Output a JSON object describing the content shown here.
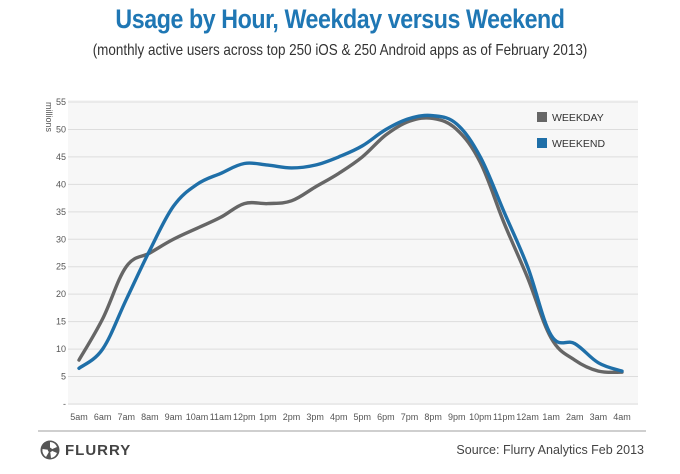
{
  "header": {
    "title": "Usage by Hour, Weekday versus Weekend",
    "subtitle": "(monthly active users across top 250 iOS & 250 Android apps as of February 2013)"
  },
  "footer": {
    "logo_text": "FLURRY",
    "logo_icon": "flurry-logo-icon",
    "source": "Source: Flurry Analytics Feb 2013"
  },
  "colors": {
    "title": "#1f77b4",
    "weekday": "#666666",
    "weekend": "#1f6fa8",
    "grid": "#dddddd",
    "plot_bg": "#f7f7f7"
  },
  "chart_data": {
    "type": "line",
    "ylabel": "millions",
    "xlabel": "",
    "ylim": [
      0,
      55
    ],
    "yticks": [
      "-",
      "5",
      "10",
      "15",
      "20",
      "25",
      "30",
      "35",
      "40",
      "45",
      "50",
      "55"
    ],
    "grid": "horizontal",
    "legend_position": "top-right",
    "categories": [
      "5am",
      "6am",
      "7am",
      "8am",
      "9am",
      "10am",
      "11am",
      "12pm",
      "1pm",
      "2pm",
      "3pm",
      "4pm",
      "5pm",
      "6pm",
      "7pm",
      "8pm",
      "9pm",
      "10pm",
      "11pm",
      "12am",
      "1am",
      "2am",
      "3am",
      "4am"
    ],
    "series": [
      {
        "name": "WEEKDAY",
        "color": "#666666",
        "values": [
          8,
          15.5,
          25,
          27.5,
          30,
          32,
          34,
          36.5,
          36.5,
          37,
          39.5,
          42,
          45,
          49,
          51.5,
          52,
          50,
          44,
          33,
          23,
          12,
          8,
          6,
          5.8
        ]
      },
      {
        "name": "WEEKEND",
        "color": "#1f6fa8",
        "values": [
          6.5,
          10,
          19,
          28,
          36,
          40,
          42,
          43.8,
          43.5,
          43,
          43.5,
          45,
          47,
          50,
          52,
          52.5,
          51,
          45,
          35,
          25,
          12.5,
          11,
          7.5,
          6
        ]
      }
    ]
  }
}
